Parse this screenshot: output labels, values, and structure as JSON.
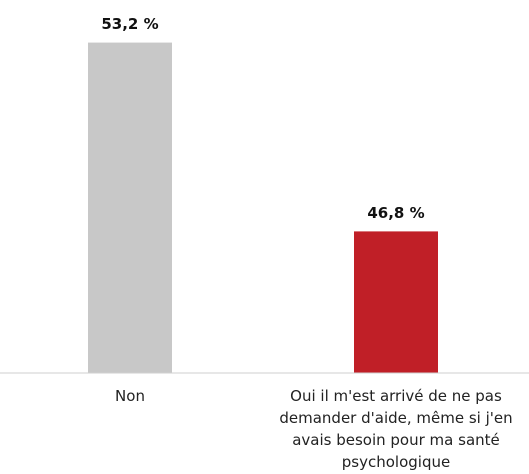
{
  "chart_data": {
    "type": "bar",
    "categories": [
      "Non",
      "Oui il m'est arrivé de ne pas demander d'aide, même si j'en avais besoin pour ma santé psychologique"
    ],
    "values": [
      53.2,
      46.8
    ],
    "value_labels": [
      "53,2 %",
      "46,8 %"
    ],
    "colors": [
      "#c8c8c8",
      "#c01f27"
    ],
    "ylim": [
      42,
      54
    ]
  }
}
